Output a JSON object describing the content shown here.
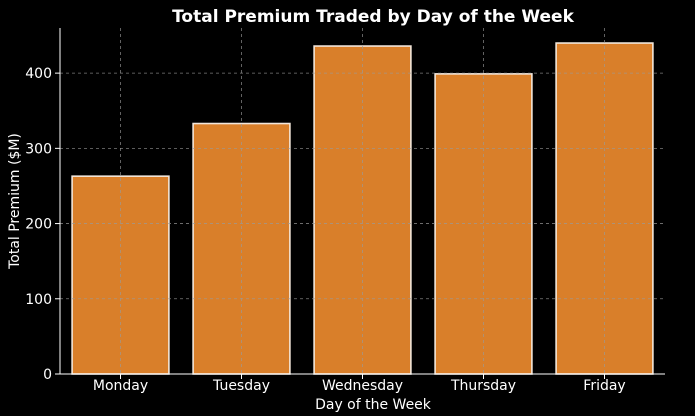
{
  "chart_data": {
    "type": "bar",
    "title": "Total Premium Traded by Day of the Week",
    "xlabel": "Day of the Week",
    "ylabel": "Total Premium ($M)",
    "categories": [
      "Monday",
      "Tuesday",
      "Wednesday",
      "Thursday",
      "Friday"
    ],
    "values": [
      263,
      333,
      436,
      399,
      440
    ],
    "ylim": [
      0,
      460
    ],
    "yticks": [
      0,
      100,
      200,
      300,
      400
    ],
    "grid": true,
    "colors": {
      "background": "#000000",
      "bar_fill": "#d97f2a",
      "bar_edge": "#f2e6da",
      "text": "#ffffff",
      "axis": "#ffffff",
      "grid": "#9a9a9a"
    }
  }
}
